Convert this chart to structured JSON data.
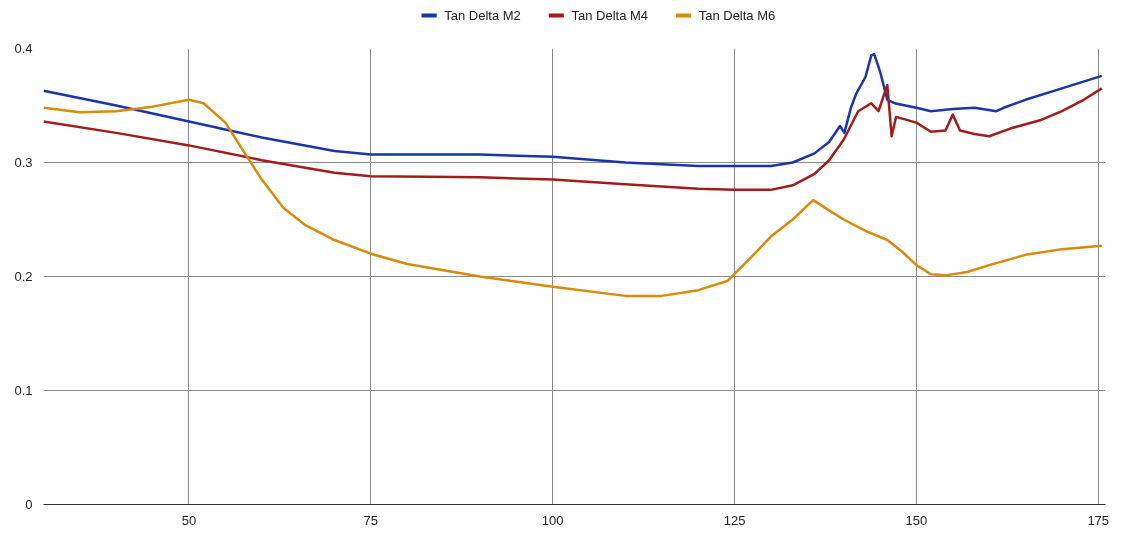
{
  "chart_data": {
    "type": "line",
    "legend": "top",
    "grid": true,
    "marker": "none",
    "line_style": "solid",
    "xlim": [
      30,
      176
    ],
    "xticks": [
      50,
      75,
      100,
      125,
      150,
      175
    ],
    "ylim": [
      0,
      0.4
    ],
    "yticks": [
      0,
      0.1,
      0.2,
      0.3,
      0.4
    ],
    "series": [
      {
        "name": "Tan Delta M2",
        "color": "#1a35a8",
        "x": [
          30,
          40,
          50,
          60,
          70,
          75,
          90,
          100,
          110,
          120,
          130,
          133,
          136,
          138,
          139.5,
          140.1,
          141,
          141.7,
          143,
          143.8,
          144.2,
          145,
          146,
          147,
          150,
          152,
          155,
          158,
          161,
          162,
          165,
          170,
          175.5
        ],
        "values": [
          0.363,
          0.35,
          0.336,
          0.322,
          0.31,
          0.307,
          0.307,
          0.305,
          0.3,
          0.297,
          0.297,
          0.3,
          0.308,
          0.318,
          0.332,
          0.326,
          0.348,
          0.36,
          0.375,
          0.394,
          0.395,
          0.38,
          0.355,
          0.352,
          0.348,
          0.345,
          0.347,
          0.348,
          0.345,
          0.348,
          0.355,
          0.365,
          0.376
        ]
      },
      {
        "name": "Tan Delta M4",
        "color": "#a31c1c",
        "x": [
          30,
          40,
          50,
          60,
          70,
          75,
          90,
          100,
          110,
          120,
          125,
          130,
          133,
          136,
          138,
          140,
          142,
          143.8,
          144.8,
          146.0,
          146.6,
          147.2,
          150,
          152,
          154,
          155,
          156,
          158,
          160,
          163,
          167,
          170,
          173,
          175.5
        ],
        "values": [
          0.336,
          0.326,
          0.315,
          0.302,
          0.291,
          0.288,
          0.287,
          0.285,
          0.281,
          0.277,
          0.276,
          0.276,
          0.28,
          0.29,
          0.302,
          0.32,
          0.345,
          0.352,
          0.345,
          0.368,
          0.323,
          0.34,
          0.335,
          0.327,
          0.328,
          0.342,
          0.328,
          0.325,
          0.323,
          0.33,
          0.337,
          0.345,
          0.355,
          0.365
        ]
      },
      {
        "name": "Tan Delta M6",
        "color": "#d98a0b",
        "x": [
          30,
          35,
          40,
          45,
          50,
          52,
          55,
          58,
          60,
          63,
          66,
          70,
          75,
          80,
          90,
          100,
          110,
          115,
          120,
          124,
          127,
          130,
          133,
          135.8,
          138,
          140,
          143,
          146,
          148,
          150,
          152,
          154,
          157,
          160,
          165,
          170,
          175.5
        ],
        "values": [
          0.348,
          0.344,
          0.345,
          0.349,
          0.355,
          0.352,
          0.335,
          0.305,
          0.285,
          0.26,
          0.245,
          0.232,
          0.22,
          0.211,
          0.2,
          0.191,
          0.183,
          0.183,
          0.188,
          0.196,
          0.215,
          0.235,
          0.25,
          0.267,
          0.258,
          0.25,
          0.24,
          0.232,
          0.222,
          0.21,
          0.202,
          0.201,
          0.204,
          0.21,
          0.219,
          0.224,
          0.227
        ]
      }
    ]
  }
}
